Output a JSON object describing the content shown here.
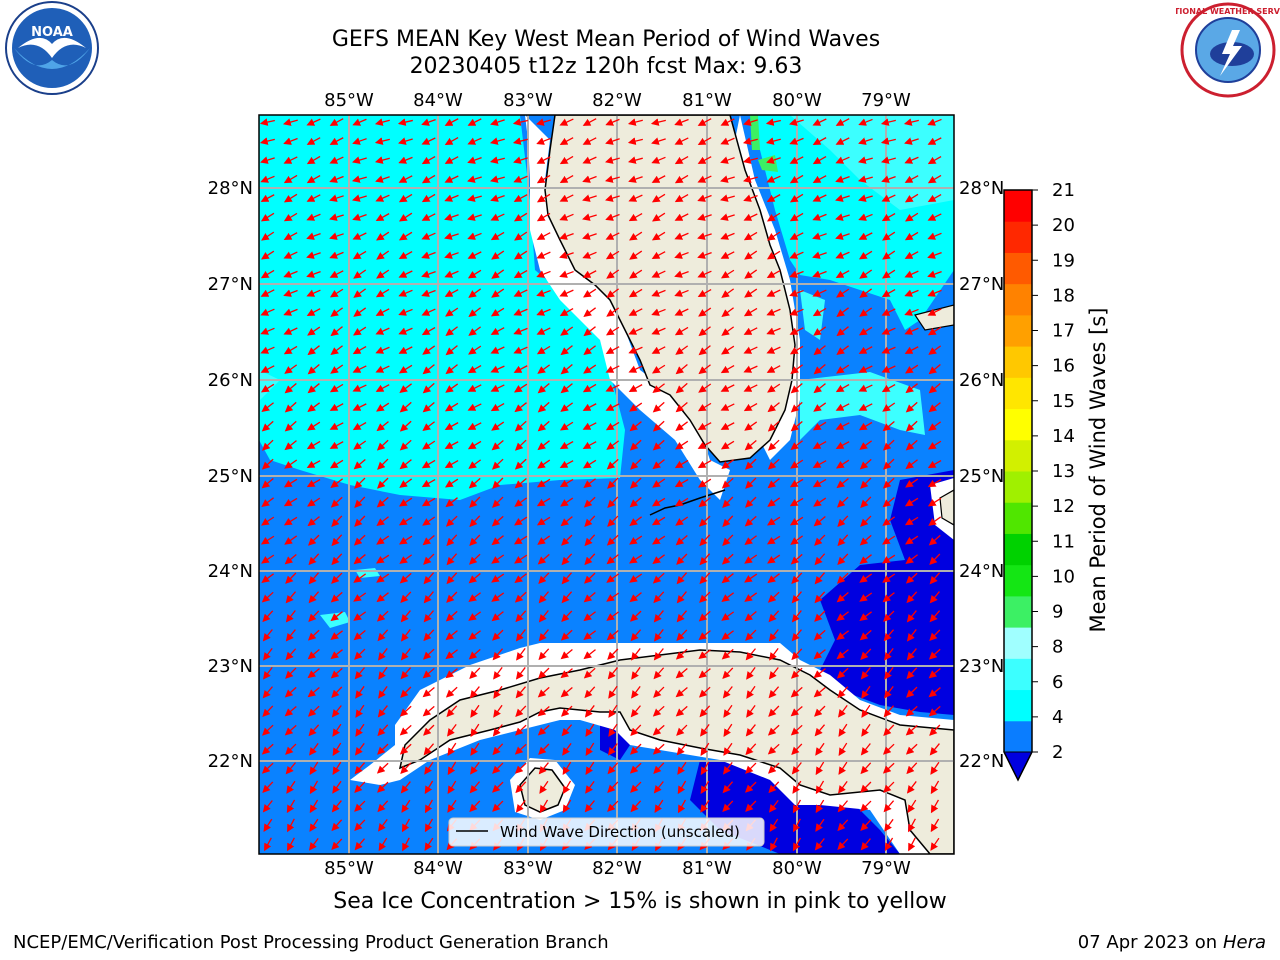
{
  "title": {
    "line1": "GEFS MEAN Key West Mean Period of Wind Waves",
    "line2": "20230405 t12z 120h fcst   Max: 9.63"
  },
  "subtitle": "Sea Ice Concentration > 15% is shown in pink to yellow",
  "footer": {
    "left": "NCEP/EMC/Verification Post Processing Product Generation Branch",
    "right_date": "07 Apr 2023 on",
    "right_machine": "Hera"
  },
  "map": {
    "lon_labels": [
      "85°W",
      "84°W",
      "83°W",
      "82°W",
      "81°W",
      "80°W",
      "79°W"
    ],
    "lat_labels": [
      "28°N",
      "27°N",
      "26°N",
      "25°N",
      "24°N",
      "23°N",
      "22°N"
    ],
    "legend_label": "Wind Wave Direction (unscaled)",
    "colors": {
      "land": "#eeecdc",
      "level_2_4": "#0a82ff",
      "level_4_6": "#00ffff",
      "level_6_8": "#3cffff",
      "level_below_2": "#0000e0",
      "arrow": "#ff0000"
    }
  },
  "colorbar": {
    "title": "Mean Period of Wind Waves [s]",
    "ticks": [
      "21",
      "20",
      "19",
      "18",
      "17",
      "16",
      "15",
      "14",
      "13",
      "12",
      "11",
      "10",
      "9",
      "8",
      "6",
      "4",
      "2"
    ],
    "colors": [
      "#0a7dff",
      "#00ffff",
      "#3cffff",
      "#a0ffff",
      "#3cf064",
      "#14e614",
      "#00d200",
      "#50e600",
      "#a0f000",
      "#d2f000",
      "#ffff00",
      "#ffe600",
      "#ffc800",
      "#ffa000",
      "#ff8200",
      "#ff5a00",
      "#ff2800",
      "#ff0000"
    ]
  },
  "logos": {
    "left": "NOAA",
    "right": "NATIONAL WEATHER SERVICE"
  }
}
